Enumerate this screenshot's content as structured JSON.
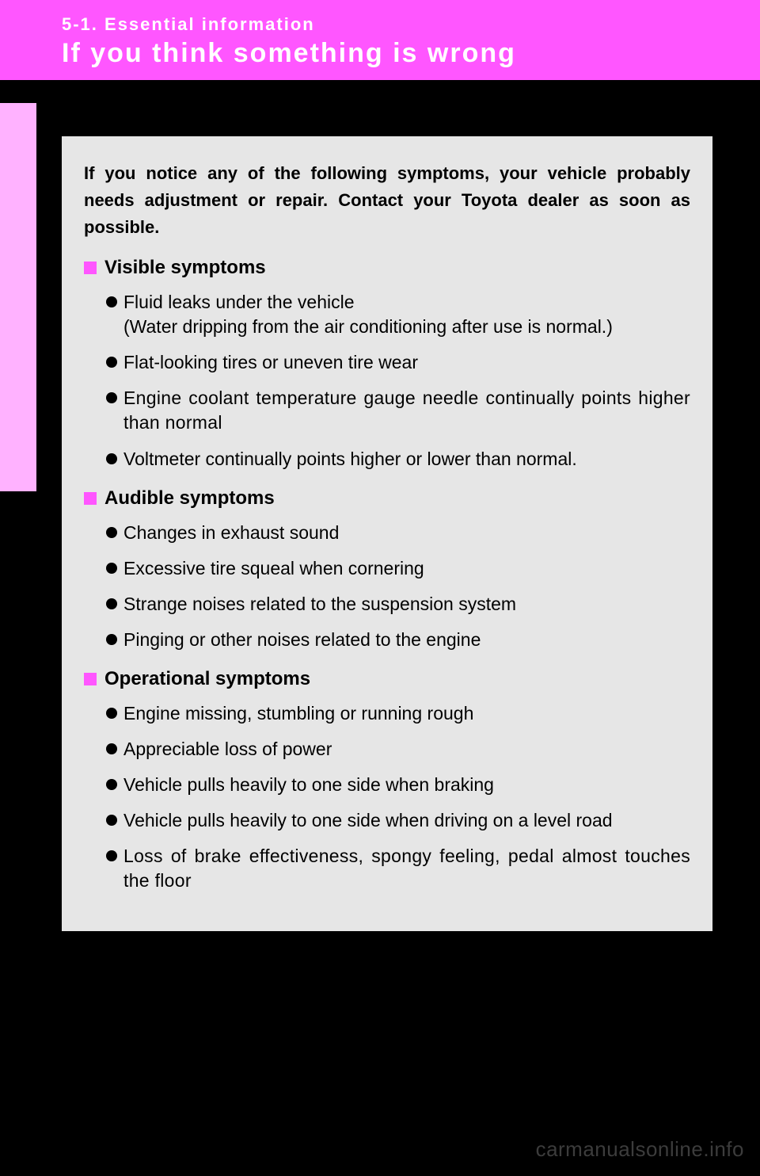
{
  "header": {
    "section_number": "5-1. Essential information",
    "title": "If you think something is wrong"
  },
  "intro": "If you notice any of the following symptoms, your vehicle probably needs adjustment or repair. Contact your Toyota dealer as soon as possible.",
  "sections": [
    {
      "heading": "Visible symptoms",
      "items": [
        "Fluid leaks under the vehicle\n(Water dripping from the air conditioning after use is normal.)",
        "Flat-looking tires or uneven tire wear",
        "Engine coolant temperature gauge needle continually points higher than normal",
        "Voltmeter continually points higher or lower than normal."
      ]
    },
    {
      "heading": "Audible symptoms",
      "items": [
        "Changes in exhaust sound",
        "Excessive tire squeal when cornering",
        "Strange noises related to the suspension system",
        "Pinging or other noises related to the engine"
      ]
    },
    {
      "heading": "Operational symptoms",
      "items": [
        "Engine missing, stumbling or running rough",
        "Appreciable loss of power",
        "Vehicle pulls heavily to one side when braking",
        "Vehicle pulls heavily to one side when driving on a level road",
        "Loss of brake effectiveness, spongy feeling, pedal almost touches the floor"
      ]
    }
  ],
  "watermark": "carmanualsonline.info",
  "colors": {
    "header_bg": "#ff56ff",
    "tab_bg": "#ffb2ff",
    "content_bg": "#e6e6e6",
    "bullet_square": "#ff56ff",
    "page_bg": "#000000"
  }
}
